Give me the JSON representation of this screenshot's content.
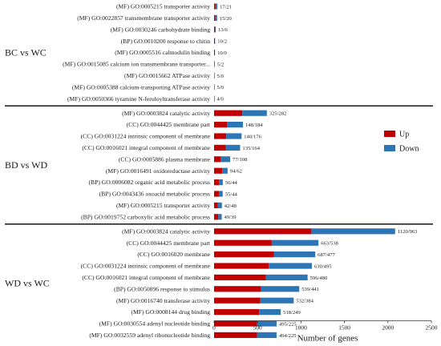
{
  "chart_data": {
    "type": "bar",
    "orientation": "horizontal",
    "stacked": true,
    "xlabel": "Number of genes",
    "xlim": [
      0,
      2500
    ],
    "xticks": [
      0,
      500,
      1000,
      1500,
      2000,
      2500
    ],
    "grid": false,
    "legend_position": "right",
    "series": [
      {
        "name": "Up",
        "color": "#c00000"
      },
      {
        "name": "Down",
        "color": "#2e75b6"
      }
    ],
    "groups": [
      {
        "name": "BC vs WC",
        "terms": [
          {
            "label": "(MF) GO:0005215 transporter activity",
            "up": 17,
            "down": 21,
            "count_label": "17/21"
          },
          {
            "label": "(MF) GO:0022857 transmembrane transporter activity",
            "up": 15,
            "down": 20,
            "count_label": "15/20"
          },
          {
            "label": "(MF) GO:0030246 carbohydrate binding",
            "up": 13,
            "down": 6,
            "count_label": "13/6"
          },
          {
            "label": "(BP) GO:0010200 response to chitin",
            "up": 10,
            "down": 2,
            "count_label": "10/2"
          },
          {
            "label": "(MF) GO:0005516 calmodulin binding",
            "up": 10,
            "down": 0,
            "count_label": "10/0"
          },
          {
            "label": "(MF) GO:0015085 calcium ion transmembrane transporter...",
            "up": 5,
            "down": 2,
            "count_label": "5/2"
          },
          {
            "label": "(MF) GO:0015662 ATPase activity",
            "up": 5,
            "down": 0,
            "count_label": "5/0"
          },
          {
            "label": "(MF) GO:0005388 calcium-transporting ATPase activity",
            "up": 5,
            "down": 0,
            "count_label": "5/0"
          },
          {
            "label": "(MF) GO:0050366 tyramine N-feruloyltransferase activity",
            "up": 4,
            "down": 0,
            "count_label": "4/0"
          }
        ]
      },
      {
        "name": "BD vs WD",
        "terms": [
          {
            "label": "(MF) GO:0003824 catalytic activity",
            "up": 325,
            "down": 282,
            "count_label": "325/282"
          },
          {
            "label": "(CC) GO:0044425 membrane part",
            "up": 148,
            "down": 184,
            "count_label": "148/184"
          },
          {
            "label": "(CC) GO:0031224 intrinsic component of membrane",
            "up": 140,
            "down": 176,
            "count_label": "140/176"
          },
          {
            "label": "(CC) GO:0016021 integral component of membrane",
            "up": 135,
            "down": 164,
            "count_label": "135/164"
          },
          {
            "label": "(CC) GO:0005886 plasma membrane",
            "up": 77,
            "down": 108,
            "count_label": "77/108"
          },
          {
            "label": "(MF) GO:0016491 oxidoreductase activity",
            "up": 94,
            "down": 62,
            "count_label": "94/62"
          },
          {
            "label": "(BP) GO:0006082 organic acid metabolic process",
            "up": 56,
            "down": 44,
            "count_label": "56/44"
          },
          {
            "label": "(BP) GO:0043436 oxoacid metabolic process",
            "up": 55,
            "down": 44,
            "count_label": "55/44"
          },
          {
            "label": "(MF) GO:0005215 transporter activity",
            "up": 42,
            "down": 48,
            "count_label": "42/48"
          },
          {
            "label": "(BP) GO:0019752 carboxylic acid metabolic process",
            "up": 49,
            "down": 39,
            "count_label": "49/39"
          }
        ]
      },
      {
        "name": "WD vs WC",
        "terms": [
          {
            "label": "(MF) GO:0003824 catalytic activity",
            "up": 1120,
            "down": 963,
            "count_label": "1120/963"
          },
          {
            "label": "(CC) GO:0044425 membrane part",
            "up": 663,
            "down": 538,
            "count_label": "663/538"
          },
          {
            "label": "(CC) GO:0016020 membrane",
            "up": 687,
            "down": 477,
            "count_label": "687/477"
          },
          {
            "label": "(CC) GO:0031224 intrinsic component of membrane",
            "up": 630,
            "down": 495,
            "count_label": "630/495"
          },
          {
            "label": "(CC) GO:0016021 integral component of membrane",
            "up": 596,
            "down": 480,
            "count_label": "596/480"
          },
          {
            "label": "(BP) GO:0050896 response to stimulus",
            "up": 539,
            "down": 441,
            "count_label": "539/441"
          },
          {
            "label": "(MF) GO:0016740 transferase activity",
            "up": 532,
            "down": 384,
            "count_label": "532/384"
          },
          {
            "label": "(MF) GO:0008144 drug binding",
            "up": 518,
            "down": 249,
            "count_label": "518/249"
          },
          {
            "label": "(MF) GO:0030554 adenyl nucleotide binding",
            "up": 495,
            "down": 225,
            "count_label": "495/225"
          },
          {
            "label": "(MF) GO:0032559 adenyl ribonucleotide binding",
            "up": 494,
            "down": 225,
            "count_label": "494/225"
          }
        ]
      }
    ]
  }
}
